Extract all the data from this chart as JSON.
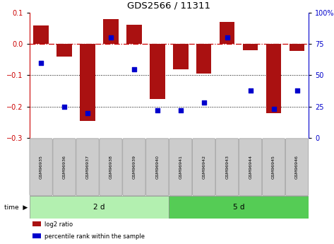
{
  "title": "GDS2566 / 11311",
  "samples": [
    "GSM96935",
    "GSM96936",
    "GSM96937",
    "GSM96938",
    "GSM96939",
    "GSM96940",
    "GSM96941",
    "GSM96942",
    "GSM96943",
    "GSM96944",
    "GSM96945",
    "GSM96946"
  ],
  "log2_ratio": [
    0.06,
    -0.04,
    -0.245,
    0.08,
    0.062,
    -0.175,
    -0.08,
    -0.095,
    0.07,
    -0.02,
    -0.22,
    -0.022
  ],
  "percentile_rank": [
    60,
    25,
    20,
    80,
    55,
    22,
    22,
    28,
    80,
    38,
    23,
    38
  ],
  "groups": [
    {
      "label": "2 d",
      "color": "#b3f0b0",
      "start": 0,
      "end": 6
    },
    {
      "label": "5 d",
      "color": "#55cc55",
      "start": 6,
      "end": 12
    }
  ],
  "bar_color": "#aa1111",
  "dot_color": "#0000cc",
  "ylim": [
    -0.3,
    0.1
  ],
  "y2lim": [
    0,
    100
  ],
  "yticks_left": [
    -0.3,
    -0.2,
    -0.1,
    0.0,
    0.1
  ],
  "yticks_right": [
    0,
    25,
    50,
    75,
    100
  ],
  "hline_zero_color": "#cc0000",
  "hline_dotted_vals": [
    -0.1,
    -0.2
  ],
  "background_color": "#ffffff",
  "legend_log2": "log2 ratio",
  "legend_pct": "percentile rank within the sample",
  "bar_width": 0.65
}
